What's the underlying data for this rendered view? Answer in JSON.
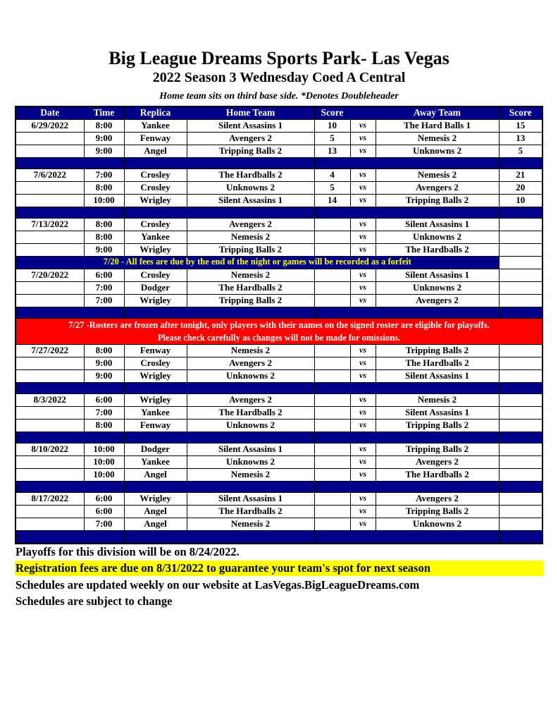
{
  "page": {
    "title": "Big League Dreams Sports Park- Las Vegas",
    "subtitle": "2022 Season 3 Wednesday Coed A Central",
    "note": "Home team sits on third base side.  *Denotes Doubleheader"
  },
  "table": {
    "headers": [
      "Date",
      "Time",
      "Replica",
      "Home Team",
      "Score",
      "",
      "Away Team",
      "Score"
    ],
    "vs_label": "vs",
    "colors": {
      "navy": "#00008B",
      "highlight_yellow": "#FFFF00",
      "notice_red": "#FF0000"
    },
    "rows": [
      {
        "type": "game",
        "date": "6/29/2022",
        "time": "8:00",
        "replica": "Yankee",
        "home": "Silent Assasins 1",
        "home_score": "10",
        "away": "The Hard Balls 1",
        "away_score": "15",
        "home_win": false,
        "away_win": true
      },
      {
        "type": "game",
        "date": "",
        "time": "9:00",
        "replica": "Fenway",
        "home": "Avengers 2",
        "home_score": "5",
        "away": "Nemesis 2",
        "away_score": "13",
        "home_win": false,
        "away_win": true
      },
      {
        "type": "game",
        "date": "",
        "time": "9:00",
        "replica": "Angel",
        "home": "Tripping Balls 2",
        "home_score": "13",
        "away": "Unknowns 2",
        "away_score": "5",
        "home_win": true,
        "away_win": false
      },
      {
        "type": "sep"
      },
      {
        "type": "game",
        "date": "7/6/2022",
        "time": "7:00",
        "replica": "Crosley",
        "home": "The Hardballs 2",
        "home_score": "4",
        "away": "Nemesis 2",
        "away_score": "21",
        "home_win": false,
        "away_win": true
      },
      {
        "type": "game",
        "date": "",
        "time": "8:00",
        "replica": "Crosley",
        "home": "Unknowns 2",
        "home_score": "5",
        "away": "Avengers 2",
        "away_score": "20",
        "home_win": false,
        "away_win": true
      },
      {
        "type": "game",
        "date": "",
        "time": "10:00",
        "replica": "Wrigley",
        "home": "Silent Assasins 1",
        "home_score": "14",
        "away": "Tripping Balls 2",
        "away_score": "10",
        "home_win": true,
        "away_win": false
      },
      {
        "type": "sep"
      },
      {
        "type": "game",
        "date": "7/13/2022",
        "time": "8:00",
        "replica": "Crosley",
        "home": "Avengers 2",
        "home_score": "",
        "away": "Silent Assasins 1",
        "away_score": "",
        "home_win": false,
        "away_win": false
      },
      {
        "type": "game",
        "date": "",
        "time": "8:00",
        "replica": "Yankee",
        "home": "Nemesis 2",
        "home_score": "",
        "away": "Unknowns 2",
        "away_score": "",
        "home_win": false,
        "away_win": false
      },
      {
        "type": "game",
        "date": "",
        "time": "9:00",
        "replica": "Wrigley",
        "home": "Tripping Balls 2",
        "home_score": "",
        "away": "The Hardballs 2",
        "away_score": "",
        "home_win": false,
        "away_win": false
      },
      {
        "type": "notice_blue",
        "text": "7/20 - All fees are due by the end of the night or games will be recorded as a forfeit"
      },
      {
        "type": "game",
        "date": "7/20/2022",
        "time": "6:00",
        "replica": "Crosley",
        "home": "Nemesis 2",
        "home_score": "",
        "away": "Silent Assasins 1",
        "away_score": "",
        "home_win": false,
        "away_win": false
      },
      {
        "type": "game",
        "date": "",
        "time": "7:00",
        "replica": "Dodger",
        "home": "The Hardballs 2",
        "home_score": "",
        "away": "Unknowns 2",
        "away_score": "",
        "home_win": false,
        "away_win": false
      },
      {
        "type": "game",
        "date": "",
        "time": "7:00",
        "replica": "Wrigley",
        "home": "Tripping Balls 2",
        "home_score": "",
        "away": "Avengers 2",
        "away_score": "",
        "home_win": false,
        "away_win": false
      },
      {
        "type": "sep"
      },
      {
        "type": "notice_red",
        "lines": [
          "7/27 -Rosters are frozen after tonight, only players with their names on the signed roster are eligible for playoffs.",
          "Please check carefully as changes will not be made for omissions."
        ]
      },
      {
        "type": "game",
        "date": "7/27/2022",
        "time": "8:00",
        "replica": "Fenway",
        "home": "Nemesis 2",
        "home_score": "",
        "away": "Tripping Balls 2",
        "away_score": "",
        "home_win": false,
        "away_win": false
      },
      {
        "type": "game",
        "date": "",
        "time": "9:00",
        "replica": "Crosley",
        "home": "Avengers 2",
        "home_score": "",
        "away": "The Hardballs 2",
        "away_score": "",
        "home_win": false,
        "away_win": false
      },
      {
        "type": "game",
        "date": "",
        "time": "9:00",
        "replica": "Wrigley",
        "home": "Unknowns 2",
        "home_score": "",
        "away": "Silent Assasins 1",
        "away_score": "",
        "home_win": false,
        "away_win": false
      },
      {
        "type": "sep"
      },
      {
        "type": "game",
        "date": "8/3/2022",
        "time": "6:00",
        "replica": "Wrigley",
        "home": "Avengers 2",
        "home_score": "",
        "away": "Nemesis 2",
        "away_score": "",
        "home_win": false,
        "away_win": false
      },
      {
        "type": "game",
        "date": "",
        "time": "7:00",
        "replica": "Yankee",
        "home": "The Hardballs 2",
        "home_score": "",
        "away": "Silent Assasins 1",
        "away_score": "",
        "home_win": false,
        "away_win": false
      },
      {
        "type": "game",
        "date": "",
        "time": "8:00",
        "replica": "Fenway",
        "home": "Unknowns 2",
        "home_score": "",
        "away": "Tripping Balls 2",
        "away_score": "",
        "home_win": false,
        "away_win": false
      },
      {
        "type": "sep"
      },
      {
        "type": "game",
        "date": "8/10/2022",
        "time": "10:00",
        "replica": "Dodger",
        "home": "Silent Assasins 1",
        "home_score": "",
        "away": "Tripping Balls 2",
        "away_score": "",
        "home_win": false,
        "away_win": false
      },
      {
        "type": "game",
        "date": "",
        "time": "10:00",
        "replica": "Yankee",
        "home": "Unknowns 2",
        "home_score": "",
        "away": "Avengers 2",
        "away_score": "",
        "home_win": false,
        "away_win": false
      },
      {
        "type": "game",
        "date": "",
        "time": "10:00",
        "replica": "Angel",
        "home": "Nemesis 2",
        "home_score": "",
        "away": "The Hardballs 2",
        "away_score": "",
        "home_win": false,
        "away_win": false
      },
      {
        "type": "sep"
      },
      {
        "type": "game",
        "date": "8/17/2022",
        "time": "6:00",
        "replica": "Wrigley",
        "home": "Silent Assasins 1",
        "home_score": "",
        "away": "Avengers 2",
        "away_score": "",
        "home_win": false,
        "away_win": false
      },
      {
        "type": "game",
        "date": "",
        "time": "6:00",
        "replica": "Angel",
        "home": "The Hardballs 2",
        "home_score": "",
        "away": "Tripping Balls 2",
        "away_score": "",
        "home_win": false,
        "away_win": false
      },
      {
        "type": "game",
        "date": "",
        "time": "7:00",
        "replica": "Angel",
        "home": "Nemesis 2",
        "home_score": "",
        "away": "Unknowns 2",
        "away_score": "",
        "home_win": false,
        "away_win": false
      },
      {
        "type": "sep_bottom"
      }
    ]
  },
  "footer": {
    "lines": [
      {
        "text": "Playoffs for this division will be on 8/24/2022.",
        "highlight": false
      },
      {
        "text": "Registration fees are due on 8/31/2022 to guarantee your team's spot for next season",
        "highlight": true
      },
      {
        "text": "Schedules are updated weekly on our website at LasVegas.BigLeagueDreams.com",
        "highlight": false
      },
      {
        "text": "Schedules are subject to change",
        "highlight": false
      }
    ]
  }
}
